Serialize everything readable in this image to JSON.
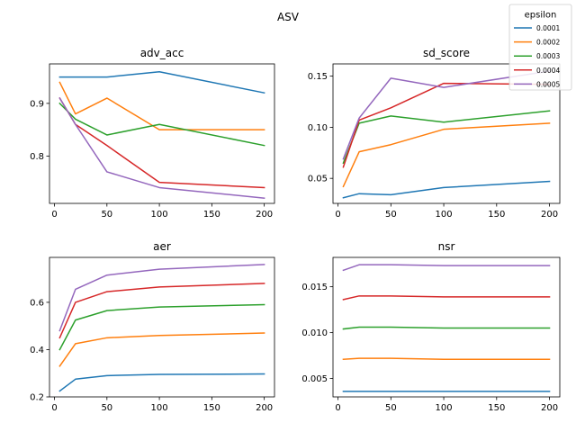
{
  "suptitle": "ASV",
  "legend": {
    "title": "epsilon",
    "entries": [
      "0.0001",
      "0.0002",
      "0.0003",
      "0.0004",
      "0.0005"
    ]
  },
  "colors": [
    "#1f77b4",
    "#ff7f0e",
    "#2ca02c",
    "#d62728",
    "#9467bd"
  ],
  "chart_data": [
    {
      "type": "line",
      "title": "adv_acc",
      "xlabel": "",
      "ylabel": "",
      "x": [
        5,
        20,
        50,
        100,
        200
      ],
      "xlim": [
        -4.75,
        209.75
      ],
      "ylim": [
        0.71,
        0.975
      ],
      "xticks": [
        0,
        50,
        100,
        150,
        200
      ],
      "yticks": [
        0.8,
        0.9
      ],
      "ytick_labels": [
        "0.8",
        "0.9"
      ],
      "series": [
        {
          "name": "0.0001",
          "values": [
            0.95,
            0.95,
            0.95,
            0.96,
            0.92
          ]
        },
        {
          "name": "0.0002",
          "values": [
            0.94,
            0.88,
            0.91,
            0.85,
            0.85
          ]
        },
        {
          "name": "0.0003",
          "values": [
            0.9,
            0.87,
            0.84,
            0.86,
            0.82
          ]
        },
        {
          "name": "0.0004",
          "values": [
            0.91,
            0.86,
            0.82,
            0.75,
            0.74
          ]
        },
        {
          "name": "0.0005",
          "values": [
            0.91,
            0.86,
            0.77,
            0.74,
            0.72
          ]
        }
      ]
    },
    {
      "type": "line",
      "title": "sd_score",
      "xlabel": "",
      "ylabel": "",
      "x": [
        5,
        20,
        50,
        100,
        200
      ],
      "xlim": [
        -4.75,
        209.75
      ],
      "ylim": [
        0.0255,
        0.162
      ],
      "xticks": [
        0,
        50,
        100,
        150,
        200
      ],
      "yticks": [
        0.05,
        0.1,
        0.15
      ],
      "ytick_labels": [
        "0.05",
        "0.10",
        "0.15"
      ],
      "series": [
        {
          "name": "0.0001",
          "values": [
            0.031,
            0.035,
            0.034,
            0.041,
            0.047
          ]
        },
        {
          "name": "0.0002",
          "values": [
            0.042,
            0.076,
            0.083,
            0.098,
            0.104
          ]
        },
        {
          "name": "0.0003",
          "values": [
            0.065,
            0.104,
            0.111,
            0.105,
            0.116
          ]
        },
        {
          "name": "0.0004",
          "values": [
            0.061,
            0.107,
            0.119,
            0.143,
            0.142
          ]
        },
        {
          "name": "0.0005",
          "values": [
            0.069,
            0.109,
            0.148,
            0.139,
            0.155
          ]
        }
      ]
    },
    {
      "type": "line",
      "title": "aer",
      "xlabel": "",
      "ylabel": "",
      "x": [
        5,
        20,
        50,
        100,
        200
      ],
      "xlim": [
        -4.75,
        209.75
      ],
      "ylim": [
        0.2,
        0.79
      ],
      "xticks": [
        0,
        50,
        100,
        150,
        200
      ],
      "yticks": [
        0.2,
        0.4,
        0.6
      ],
      "ytick_labels": [
        "0.2",
        "0.4",
        "0.6"
      ],
      "series": [
        {
          "name": "0.0001",
          "values": [
            0.225,
            0.275,
            0.29,
            0.295,
            0.297
          ]
        },
        {
          "name": "0.0002",
          "values": [
            0.33,
            0.425,
            0.45,
            0.46,
            0.47
          ]
        },
        {
          "name": "0.0003",
          "values": [
            0.4,
            0.525,
            0.565,
            0.58,
            0.59
          ]
        },
        {
          "name": "0.0004",
          "values": [
            0.45,
            0.6,
            0.645,
            0.665,
            0.68
          ]
        },
        {
          "name": "0.0005",
          "values": [
            0.48,
            0.655,
            0.715,
            0.74,
            0.76
          ]
        }
      ]
    },
    {
      "type": "line",
      "title": "nsr",
      "xlabel": "",
      "ylabel": "",
      "x": [
        5,
        20,
        50,
        100,
        200
      ],
      "xlim": [
        -4.75,
        209.75
      ],
      "ylim": [
        0.003,
        0.0182
      ],
      "xticks": [
        0,
        50,
        100,
        150,
        200
      ],
      "yticks": [
        0.005,
        0.01,
        0.015
      ],
      "ytick_labels": [
        "0.005",
        "0.010",
        "0.015"
      ],
      "series": [
        {
          "name": "0.0001",
          "values": [
            0.0036,
            0.0036,
            0.0036,
            0.0036,
            0.0036
          ]
        },
        {
          "name": "0.0002",
          "values": [
            0.0071,
            0.0072,
            0.0072,
            0.0071,
            0.0071
          ]
        },
        {
          "name": "0.0003",
          "values": [
            0.0104,
            0.0106,
            0.0106,
            0.0105,
            0.0105
          ]
        },
        {
          "name": "0.0004",
          "values": [
            0.0136,
            0.014,
            0.014,
            0.0139,
            0.0139
          ]
        },
        {
          "name": "0.0005",
          "values": [
            0.0168,
            0.0174,
            0.0174,
            0.0173,
            0.0173
          ]
        }
      ]
    }
  ]
}
